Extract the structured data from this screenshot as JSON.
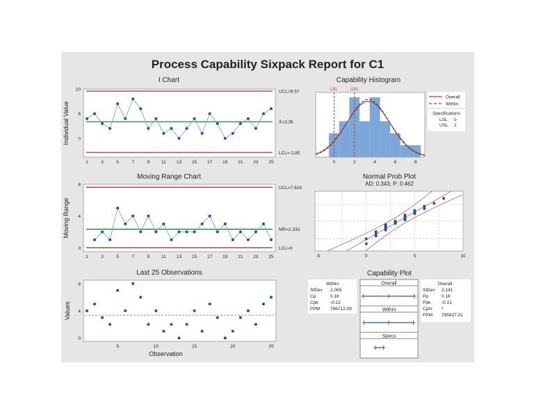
{
  "title": "Process Capability Sixpack Report for C1",
  "colors": {
    "panel": "#e6e6e6",
    "line": "#1f5fa8",
    "point": "#1a56a0",
    "limit": "#b03a3a",
    "center": "#1a8a2a",
    "bar": "#7da7d9",
    "curve": "#8b2a2a"
  },
  "chart_data": [
    {
      "type": "line",
      "title": "I Chart",
      "ylabel": "Individual Value",
      "x": [
        1,
        2,
        3,
        4,
        5,
        6,
        7,
        8,
        9,
        10,
        11,
        12,
        13,
        14,
        15,
        16,
        17,
        18,
        19,
        20,
        21,
        22,
        23,
        24,
        25
      ],
      "values": [
        4,
        5,
        3,
        2,
        7,
        4,
        8,
        6,
        2,
        4,
        1,
        2,
        0,
        2,
        4,
        1,
        5,
        3,
        0,
        1,
        3,
        4,
        2,
        5,
        6
      ],
      "ucl": 9.57,
      "center": 3.36,
      "lcl": -2.85,
      "ucl_label": "UCL=9.57",
      "center_label": "X̄=3.36",
      "lcl_label": "LCL=-2.85",
      "yticks": [
        "0",
        "5",
        "10"
      ],
      "xticks": [
        "1",
        "3",
        "5",
        "7",
        "9",
        "11",
        "13",
        "15",
        "17",
        "19",
        "21",
        "23",
        "25"
      ],
      "ylim": [
        -3.8,
        10
      ]
    },
    {
      "type": "line",
      "title": "Moving Range Chart",
      "ylabel": "Moving Range",
      "x": [
        2,
        3,
        4,
        5,
        6,
        7,
        8,
        9,
        10,
        11,
        12,
        13,
        14,
        15,
        16,
        17,
        18,
        19,
        20,
        21,
        22,
        23,
        24,
        25
      ],
      "values": [
        1,
        2,
        1,
        5,
        3,
        4,
        2,
        4,
        2,
        3,
        1,
        2,
        2,
        2,
        3,
        4,
        2,
        3,
        1,
        2,
        1,
        2,
        3,
        1
      ],
      "ucl": 7.624,
      "center": 2.333,
      "lcl": 0,
      "ucl_label": "UCL=7.624",
      "center_label": "MR=2.333",
      "lcl_label": "LCL=0",
      "yticks": [
        "0",
        "4",
        "8"
      ],
      "xticks": [
        "1",
        "3",
        "5",
        "7",
        "9",
        "11",
        "13",
        "15",
        "17",
        "19",
        "21",
        "23",
        "25"
      ],
      "ylim": [
        -0.5,
        8
      ]
    },
    {
      "type": "scatter",
      "title": "Last 25 Observations",
      "xlabel": "Observation",
      "ylabel": "Values",
      "x": [
        1,
        2,
        3,
        4,
        5,
        6,
        7,
        8,
        9,
        10,
        11,
        12,
        13,
        14,
        15,
        16,
        17,
        18,
        19,
        20,
        21,
        22,
        23,
        24,
        25
      ],
      "values": [
        4,
        5,
        3,
        2,
        7,
        4,
        8,
        6,
        2,
        4,
        1,
        2,
        0,
        2,
        4,
        1,
        5,
        3,
        0,
        1,
        3,
        4,
        2,
        5,
        6
      ],
      "mean": 3.36,
      "yticks": [
        "0",
        "4",
        "8"
      ],
      "xticks": [
        "5",
        "10",
        "15",
        "20",
        "25"
      ],
      "ylim": [
        -0.5,
        8.5
      ]
    },
    {
      "type": "bar",
      "title": "Capability Histogram",
      "categories": [
        0,
        1,
        2,
        3,
        4,
        5,
        6,
        7,
        8
      ],
      "values": [
        2,
        3,
        5,
        3,
        5,
        3,
        2,
        1,
        1
      ],
      "lsl": 0,
      "usl": 2,
      "lsl_label": "LSL",
      "usl_label": "USL",
      "mean": 3.36,
      "overall_stdev": 2.141,
      "within_stdev": 2.069,
      "xticks": [
        "0",
        "2",
        "4",
        "6",
        "8"
      ],
      "xlim": [
        -1.8,
        8.9
      ],
      "legend": {
        "overall": "Overall",
        "within": "Within",
        "position": "right"
      },
      "specs": {
        "title": "Specifications",
        "rows": [
          {
            "label": "LSL",
            "value": "0"
          },
          {
            "label": "USL",
            "value": "2"
          }
        ]
      }
    },
    {
      "type": "scatter",
      "title": "Normal Prob Plot",
      "subtitle": "AD: 0.343, P: 0.462",
      "values": [
        4,
        5,
        3,
        2,
        7,
        4,
        8,
        6,
        2,
        4,
        1,
        2,
        0,
        2,
        4,
        1,
        5,
        3,
        0,
        1,
        3,
        4,
        2,
        5,
        6
      ],
      "mean": 3.36,
      "stdev": 2.141,
      "xticks": [
        "-5",
        "0",
        "5",
        "10"
      ],
      "xlim": [
        -5.3,
        10
      ],
      "grid": true
    },
    {
      "type": "table",
      "title": "Capability Plot",
      "within": {
        "title": "Within",
        "rows": [
          {
            "label": "StDev",
            "value": "2.069"
          },
          {
            "label": "Cp",
            "value": "0.16"
          },
          {
            "label": "Cpk",
            "value": "-0.22"
          },
          {
            "label": "PPM",
            "value": "796712.09"
          }
        ]
      },
      "overall": {
        "title": "Overall",
        "rows": [
          {
            "label": "StDev",
            "value": "2.141"
          },
          {
            "label": "Pp",
            "value": "0.16"
          },
          {
            "label": "Ppk",
            "value": "-0.21"
          },
          {
            "label": "Cpm",
            "value": "*"
          },
          {
            "label": "PPM",
            "value": "795637.01"
          }
        ]
      },
      "intervals": [
        {
          "name": "Overall",
          "low": -3.06,
          "mid": 3.36,
          "high": 9.78
        },
        {
          "name": "Within",
          "low": -2.85,
          "mid": 3.36,
          "high": 9.57
        },
        {
          "name": "Specs",
          "low": 0,
          "high": 2
        }
      ]
    }
  ]
}
